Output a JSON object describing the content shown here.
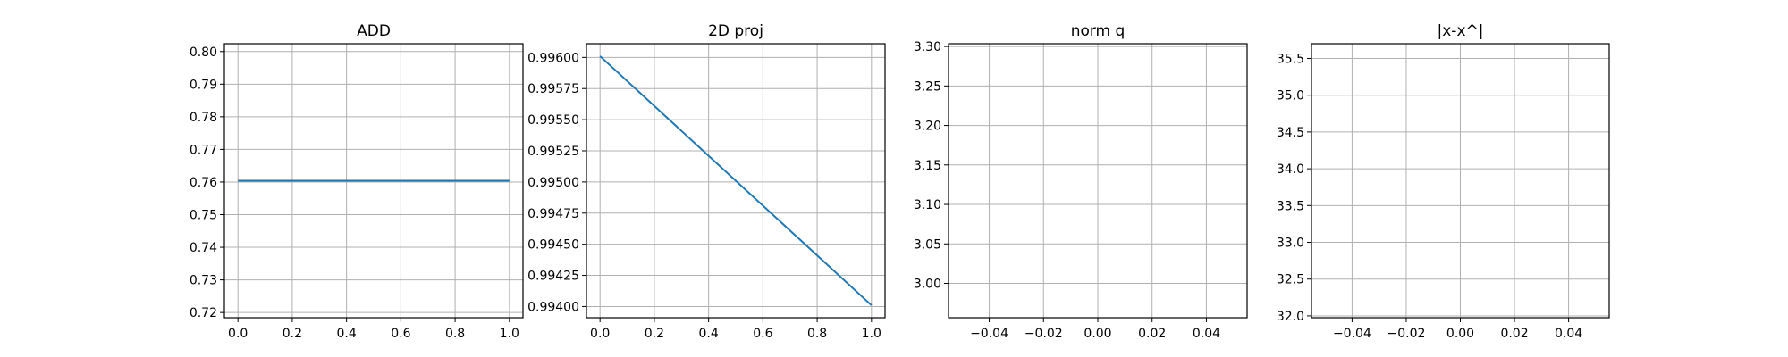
{
  "chart_data": [
    {
      "type": "line",
      "title": "ADD",
      "xlabel": "",
      "ylabel": "",
      "xlim": [
        -0.05,
        1.05
      ],
      "ylim": [
        0.7184,
        0.8024
      ],
      "xticks": [
        "0.0",
        "0.2",
        "0.4",
        "0.6",
        "0.8",
        "1.0"
      ],
      "yticks": [
        "0.72",
        "0.73",
        "0.74",
        "0.75",
        "0.76",
        "0.77",
        "0.78",
        "0.79",
        "0.80"
      ],
      "grid": true,
      "series": [
        {
          "x": [
            0.0,
            1.0
          ],
          "y": [
            0.7604,
            0.7604
          ]
        }
      ]
    },
    {
      "type": "line",
      "title": "2D proj",
      "xlabel": "",
      "ylabel": "",
      "xlim": [
        -0.05,
        1.05
      ],
      "ylim": [
        0.99391,
        0.99611
      ],
      "xticks": [
        "0.0",
        "0.2",
        "0.4",
        "0.6",
        "0.8",
        "1.0"
      ],
      "yticks": [
        "0.99400",
        "0.99425",
        "0.99450",
        "0.99475",
        "0.99500",
        "0.99525",
        "0.99550",
        "0.99575",
        "0.99600"
      ],
      "grid": true,
      "series": [
        {
          "x": [
            0.0,
            1.0
          ],
          "y": [
            0.99601,
            0.99401
          ]
        }
      ]
    },
    {
      "type": "line",
      "title": "norm q",
      "xlabel": "",
      "ylabel": "",
      "xlim": [
        -0.055,
        0.055
      ],
      "ylim": [
        2.9565,
        3.3035
      ],
      "xticks": [
        "−0.04",
        "−0.02",
        "0.00",
        "0.02",
        "0.04"
      ],
      "yticks": [
        "3.00",
        "3.05",
        "3.10",
        "3.15",
        "3.20",
        "3.25",
        "3.30"
      ],
      "grid": true,
      "series": []
    },
    {
      "type": "line",
      "title": "|x-x^|",
      "xlabel": "",
      "ylabel": "",
      "xlim": [
        -0.055,
        0.055
      ],
      "ylim": [
        31.975,
        35.7
      ],
      "xticks": [
        "−0.04",
        "−0.02",
        "0.00",
        "0.02",
        "0.04"
      ],
      "yticks": [
        "32.0",
        "32.5",
        "33.0",
        "33.5",
        "34.0",
        "34.5",
        "35.0",
        "35.5"
      ],
      "grid": true,
      "series": []
    }
  ],
  "colors": {
    "line": "#1f77b4",
    "grid": "#b0b0b0",
    "axes": "#000000"
  }
}
